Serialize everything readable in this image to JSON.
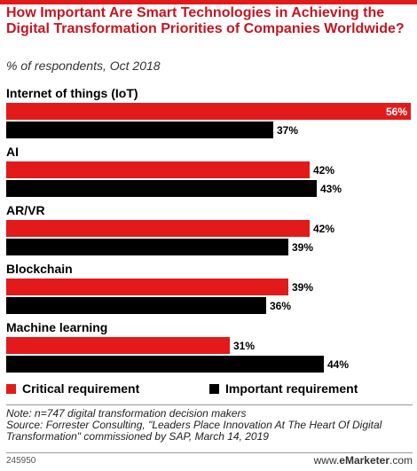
{
  "title": "How Important Are Smart Technologies in Achieving the Digital Transformation Priorities of Companies Worldwide?",
  "subtitle": "% of respondents, Oct 2018",
  "colors": {
    "critical": "#e21a1a",
    "important": "#000000",
    "accent": "#c41622"
  },
  "chart_data": {
    "type": "bar",
    "orientation": "horizontal",
    "categories": [
      "Internet of things (IoT)",
      "AI",
      "AR/VR",
      "Blockchain",
      "Machine learning"
    ],
    "series": [
      {
        "name": "Critical requirement",
        "values": [
          56,
          42,
          42,
          39,
          31
        ]
      },
      {
        "name": "Important requirement",
        "values": [
          37,
          43,
          39,
          36,
          44
        ]
      }
    ],
    "value_suffix": "%",
    "xlim": [
      0,
      56
    ],
    "grid": false,
    "legend_position": "bottom"
  },
  "legend": {
    "critical_label": "Critical requirement",
    "important_label": "Important requirement"
  },
  "notes": {
    "note": "Note: n=747 digital transformation decision makers",
    "source": "Source: Forrester Consulting, \"Leaders Place Innovation At The Heart Of Digital Transformation\" commissioned by SAP, March 14, 2019"
  },
  "footer": {
    "id": "245950",
    "brand_prefix": "www.",
    "brand_name": "eMarketer",
    "brand_suffix": ".com"
  }
}
